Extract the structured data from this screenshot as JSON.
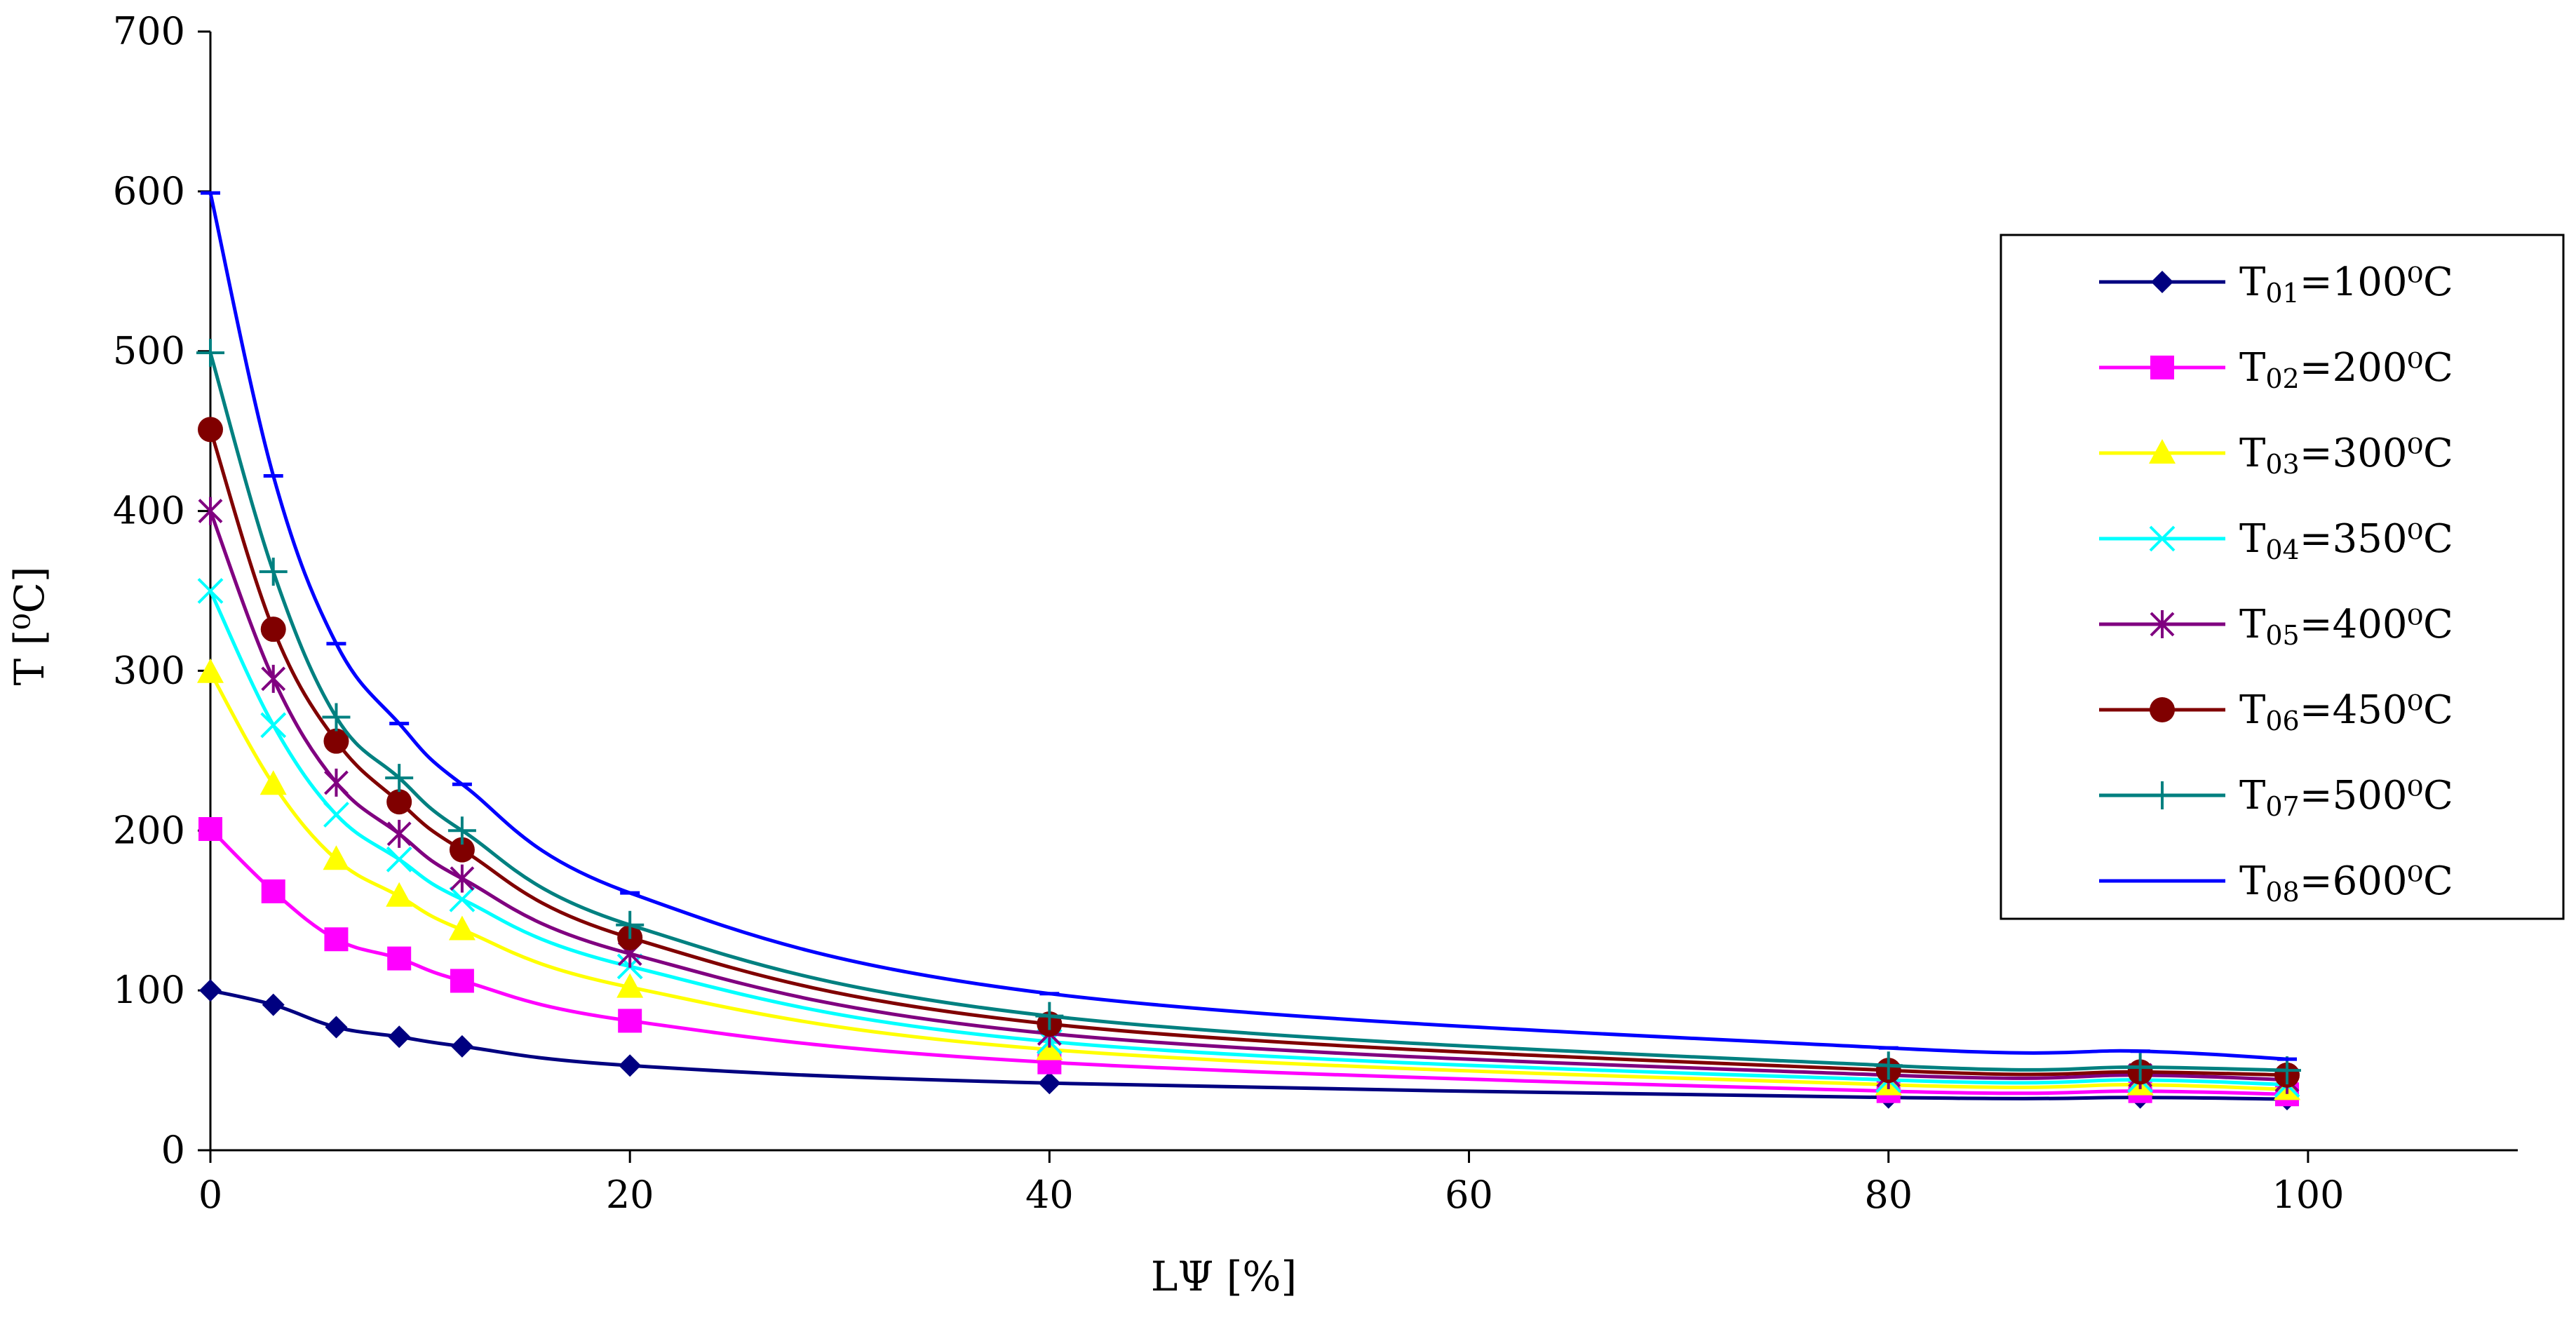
{
  "chart_data": {
    "type": "line",
    "xlabel": "LΨ [%]",
    "ylabel": "T [⁰C]",
    "xlim": [
      0,
      110
    ],
    "ylim": [
      0,
      700
    ],
    "xticks": [
      "0",
      "20",
      "40",
      "60",
      "80",
      "100"
    ],
    "xtick_values": [
      0,
      20,
      40,
      60,
      80,
      100
    ],
    "yticks": [
      "0",
      "100",
      "200",
      "300",
      "400",
      "500",
      "600",
      "700"
    ],
    "ytick_values": [
      0,
      100,
      200,
      300,
      400,
      500,
      600,
      700
    ],
    "grid": false,
    "legend_position": "right",
    "x": [
      0,
      3,
      6,
      9,
      12,
      20,
      40,
      80,
      92,
      99
    ],
    "series": [
      {
        "name": "T01=100⁰C",
        "name_main": "T",
        "name_sub": "01",
        "name_rest": "=100⁰C",
        "color": "#000080",
        "marker": "diamond",
        "values": [
          100,
          91,
          77,
          71,
          65,
          53,
          42,
          33,
          33,
          32
        ]
      },
      {
        "name": "T02=200⁰C",
        "name_main": "T",
        "name_sub": "02",
        "name_rest": "=200⁰C",
        "color": "#ff00ff",
        "marker": "square",
        "values": [
          201,
          162,
          132,
          120,
          106,
          81,
          55,
          37,
          37,
          35
        ]
      },
      {
        "name": "T03=300⁰C",
        "name_main": "T",
        "name_sub": "03",
        "name_rest": "=300⁰C",
        "color": "#ffff00",
        "marker": "triangle",
        "values": [
          299,
          229,
          182,
          159,
          138,
          102,
          63,
          41,
          41,
          38
        ]
      },
      {
        "name": "T04=350⁰C",
        "name_main": "T",
        "name_sub": "04",
        "name_rest": "=350⁰C",
        "color": "#00ffff",
        "marker": "x",
        "values": [
          350,
          266,
          210,
          182,
          157,
          115,
          68,
          44,
          44,
          41
        ]
      },
      {
        "name": "T05=400⁰C",
        "name_main": "T",
        "name_sub": "05",
        "name_rest": "=400⁰C",
        "color": "#800080",
        "marker": "star",
        "values": [
          400,
          295,
          230,
          198,
          170,
          123,
          73,
          47,
          47,
          44
        ]
      },
      {
        "name": "T06=450⁰C",
        "name_main": "T",
        "name_sub": "06",
        "name_rest": "=450⁰C",
        "color": "#800000",
        "marker": "circle",
        "values": [
          451,
          326,
          256,
          218,
          188,
          133,
          79,
          50,
          49,
          47
        ]
      },
      {
        "name": "T07=500⁰C",
        "name_main": "T",
        "name_sub": "07",
        "name_rest": "=500⁰C",
        "color": "#008080",
        "marker": "plus",
        "values": [
          499,
          362,
          271,
          233,
          200,
          141,
          84,
          53,
          52,
          50
        ]
      },
      {
        "name": "T08=600⁰C",
        "name_main": "T",
        "name_sub": "08",
        "name_rest": "=600⁰C",
        "color": "#0000ff",
        "marker": "dash",
        "values": [
          599,
          422,
          317,
          267,
          229,
          161,
          98,
          64,
          62,
          57
        ]
      }
    ]
  }
}
